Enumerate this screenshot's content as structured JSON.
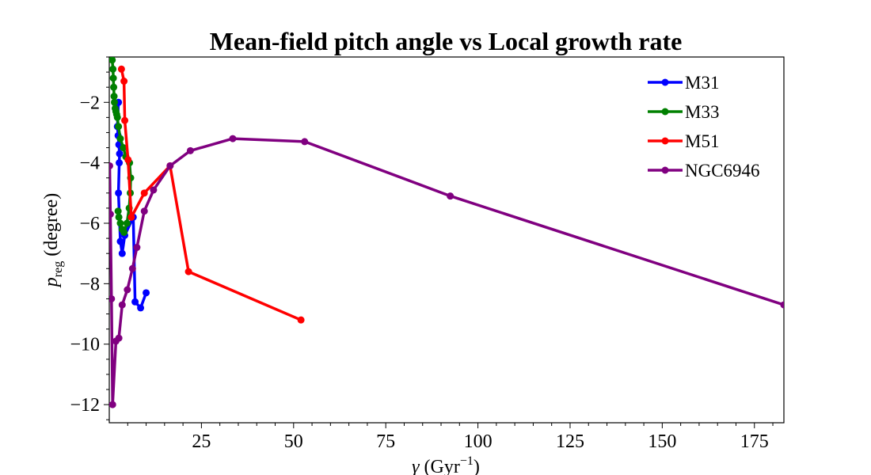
{
  "chart_data": {
    "type": "line",
    "title": "Mean-field pitch angle vs Local growth rate",
    "xlabel": {
      "symbol": "γ",
      "unit_prefix": " (Gyr",
      "unit_exp": "−1",
      "unit_suffix": ")"
    },
    "ylabel": {
      "symbol": "p",
      "subscript": "reg",
      "rest": " (degree)"
    },
    "xlim": [
      0,
      183
    ],
    "ylim": [
      -12.6,
      -0.5
    ],
    "xticks": [
      25,
      50,
      75,
      100,
      125,
      150,
      175
    ],
    "yticks": [
      -2,
      -4,
      -6,
      -8,
      -10,
      -12
    ],
    "xtick_labels": [
      "25",
      "50",
      "75",
      "100",
      "125",
      "150",
      "175"
    ],
    "ytick_labels": [
      "−2",
      "−4",
      "−6",
      "−8",
      "−10",
      "−12"
    ],
    "legend_position": "top-right",
    "grid": false,
    "series": [
      {
        "name": "M31",
        "color": "#0000ff",
        "x": [
          2.5,
          2.2,
          2.4,
          2.6,
          2.8,
          2.7,
          2.5,
          3.0,
          3.5,
          4.2,
          6.5,
          7.0,
          8.5,
          10.0
        ],
        "y": [
          -2.0,
          -2.8,
          -3.1,
          -3.4,
          -3.7,
          -4.0,
          -5.0,
          -6.6,
          -7.0,
          -6.4,
          -5.8,
          -8.6,
          -8.8,
          -8.3
        ]
      },
      {
        "name": "M33",
        "color": "#008000",
        "x": [
          0.8,
          1.0,
          1.1,
          1.2,
          1.3,
          1.4,
          1.6,
          1.8,
          2.0,
          2.2,
          2.5,
          3.0,
          3.8,
          4.5,
          5.5,
          5.8,
          5.7,
          5.4,
          4.8,
          4.0,
          3.5,
          3.0,
          2.6,
          2.4
        ],
        "y": [
          -0.6,
          -0.9,
          -1.2,
          -1.5,
          -1.8,
          -2.0,
          -2.2,
          -2.3,
          -2.4,
          -2.5,
          -2.8,
          -3.2,
          -3.5,
          -3.8,
          -4.0,
          -4.5,
          -5.0,
          -5.5,
          -6.0,
          -6.3,
          -6.2,
          -6.0,
          -5.8,
          -5.6
        ]
      },
      {
        "name": "M51",
        "color": "#ff0000",
        "x": [
          3.3,
          4.0,
          4.2,
          5.1,
          6.0,
          9.5,
          16.5,
          21.5,
          52.0
        ],
        "y": [
          -0.9,
          -1.3,
          -2.6,
          -3.9,
          -5.8,
          -5.0,
          -4.1,
          -7.6,
          -9.2
        ]
      },
      {
        "name": "NGC6946",
        "color": "#800080",
        "x": [
          0.1,
          0.3,
          0.6,
          0.9,
          1.8,
          2.6,
          3.5,
          4.9,
          6.3,
          7.5,
          9.5,
          12.0,
          16.5,
          22.0,
          33.5,
          53.0,
          92.5,
          183.0
        ],
        "y": [
          -4.1,
          -5.7,
          -8.5,
          -12.0,
          -9.9,
          -9.8,
          -8.7,
          -8.2,
          -7.5,
          -6.8,
          -5.6,
          -4.9,
          -4.1,
          -3.6,
          -3.2,
          -3.3,
          -5.1,
          -8.7
        ]
      }
    ]
  }
}
